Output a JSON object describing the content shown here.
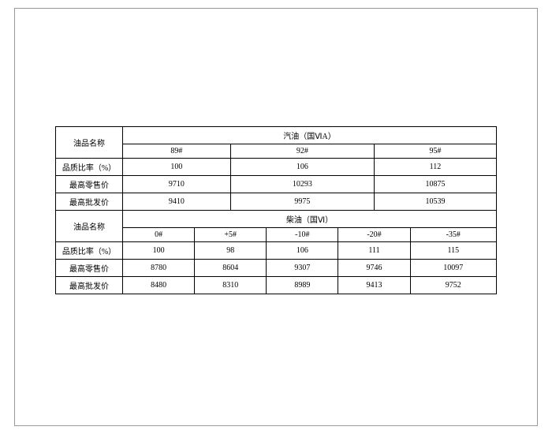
{
  "table": {
    "gasoline": {
      "name_label": "油品名称",
      "header": "汽油（国ⅥA）",
      "grades": [
        "89#",
        "92#",
        "95#"
      ],
      "rows": [
        {
          "label": "品质比率（%）",
          "values": [
            "100",
            "106",
            "112"
          ]
        },
        {
          "label": "最高零售价",
          "values": [
            "9710",
            "10293",
            "10875"
          ]
        },
        {
          "label": "最高批发价",
          "values": [
            "9410",
            "9975",
            "10539"
          ]
        }
      ]
    },
    "diesel": {
      "name_label": "油品名称",
      "header": "柴油（国Ⅵ）",
      "grades": [
        "0#",
        "+5#",
        "-10#",
        "-20#",
        "-35#"
      ],
      "rows": [
        {
          "label": "品质比率（%）",
          "values": [
            "100",
            "98",
            "106",
            "111",
            "115"
          ]
        },
        {
          "label": "最高零售价",
          "values": [
            "8780",
            "8604",
            "9307",
            "9746",
            "10097"
          ]
        },
        {
          "label": "最高批发价",
          "values": [
            "8480",
            "8310",
            "8989",
            "9413",
            "9752"
          ]
        }
      ]
    }
  },
  "style": {
    "font_size": 10,
    "border_color": "#000000",
    "background": "#ffffff",
    "page_border_color": "#999999"
  }
}
